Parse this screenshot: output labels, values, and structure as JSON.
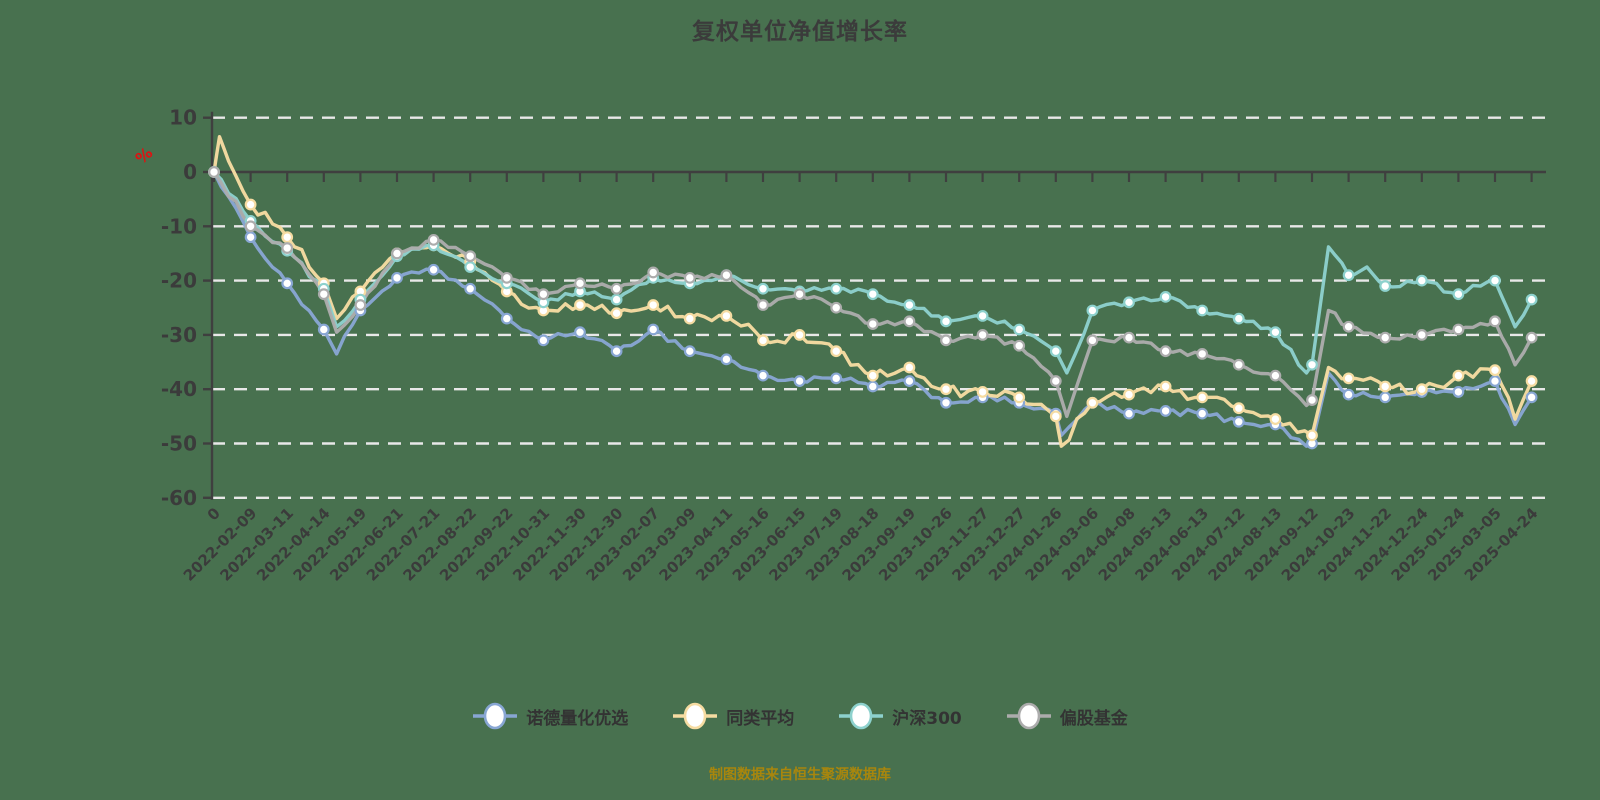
{
  "title": "复权单位净值增长率",
  "caption": "制图数据来自恒生聚源数据库",
  "chart_data": {
    "type": "line",
    "title": "复权单位净值增长率",
    "xlabel": "",
    "ylabel": "%",
    "ylim": [
      -60,
      10
    ],
    "y_ticks": [
      10,
      0,
      -10,
      -20,
      -30,
      -40,
      -50,
      -60
    ],
    "grid": "horizontal dashed",
    "legend_position": "bottom",
    "marker": "white circle at every category tick",
    "categories": [
      "0",
      "2022-02-09",
      "2022-03-11",
      "2022-04-14",
      "2022-05-19",
      "2022-06-21",
      "2022-07-21",
      "2022-08-22",
      "2022-09-22",
      "2022-10-31",
      "2022-11-30",
      "2022-12-30",
      "2023-02-07",
      "2023-03-09",
      "2023-04-11",
      "2023-05-16",
      "2023-06-15",
      "2023-07-19",
      "2023-08-18",
      "2023-09-19",
      "2023-10-26",
      "2023-11-27",
      "2023-12-27",
      "2024-01-26",
      "2024-03-06",
      "2024-04-08",
      "2024-05-13",
      "2024-06-13",
      "2024-07-12",
      "2024-08-13",
      "2024-09-12",
      "2024-10-23",
      "2024-11-22",
      "2024-12-24",
      "2025-01-24",
      "2025-03-05",
      "2025-04-24"
    ],
    "series": [
      {
        "name": "诺德量化优选",
        "color": "#88a6d3",
        "values": [
          0,
          -12,
          -20.5,
          -29,
          -25.5,
          -19.5,
          -18,
          -21.5,
          -27,
          -31,
          -29.5,
          -33,
          -29,
          -33,
          -34.5,
          -37.5,
          -38.5,
          -38,
          -39.5,
          -38.5,
          -42.5,
          -41.5,
          -42.5,
          -44.5,
          -42.5,
          -44.5,
          -44,
          -44.5,
          -46,
          -46.5,
          -50,
          -41,
          -41.5,
          -40.5,
          -40.5,
          -38.5,
          -41.5
        ],
        "between_tick_features": [
          [
            3.35,
            -33.5
          ],
          [
            23.15,
            -48.5
          ],
          [
            29.85,
            -50.5
          ],
          [
            30.45,
            -37
          ],
          [
            35.55,
            -46.5
          ]
        ]
      },
      {
        "name": "同类平均",
        "color": "#f6dca2",
        "values": [
          0,
          -6,
          -12,
          -20.5,
          -22,
          -15,
          -13.5,
          -16.5,
          -22,
          -25.5,
          -24.5,
          -26,
          -24.5,
          -27,
          -26.5,
          -31,
          -30,
          -33,
          -37.5,
          -36,
          -40,
          -40.5,
          -41.5,
          -45,
          -42.5,
          -41,
          -39.5,
          -41.5,
          -43.5,
          -45.5,
          -48.5,
          -38,
          -39.5,
          -40,
          -37.5,
          -36.5,
          -38.5
        ],
        "between_tick_features": [
          [
            0.15,
            6.5
          ],
          [
            0.4,
            2
          ],
          [
            3.35,
            -27
          ],
          [
            23.15,
            -50.5
          ],
          [
            30.45,
            -36
          ],
          [
            35.55,
            -45.5
          ]
        ]
      },
      {
        "name": "沪深300",
        "color": "#8dd1cd",
        "values": [
          0,
          -9,
          -14.5,
          -21.5,
          -23.5,
          -15.5,
          -13.5,
          -17.5,
          -20.5,
          -24,
          -22,
          -23.5,
          -19.5,
          -20.5,
          -19,
          -21.5,
          -22,
          -21.5,
          -22.5,
          -24.5,
          -27.5,
          -26.5,
          -29,
          -33,
          -25.5,
          -24,
          -23,
          -25.5,
          -27,
          -29.5,
          -35.5,
          -19,
          -21,
          -20,
          -22.5,
          -20,
          -23.5
        ],
        "between_tick_features": [
          [
            3.35,
            -28.5
          ],
          [
            23.3,
            -37
          ],
          [
            29.85,
            -37
          ],
          [
            30.45,
            -13.8
          ],
          [
            31.5,
            -17.5
          ],
          [
            35.55,
            -28.5
          ]
        ]
      },
      {
        "name": "偏股基金",
        "color": "#acacac",
        "values": [
          0,
          -10,
          -14,
          -22.5,
          -24.5,
          -15,
          -12.5,
          -15.5,
          -19.5,
          -22.5,
          -20.5,
          -21.5,
          -18.5,
          -19.5,
          -19,
          -24.5,
          -22.5,
          -25,
          -28,
          -27.5,
          -31,
          -30,
          -32,
          -38.5,
          -31,
          -30.5,
          -33,
          -33.5,
          -35.5,
          -37.5,
          -42,
          -28.5,
          -30.5,
          -30,
          -29,
          -27.5,
          -30.5
        ],
        "between_tick_features": [
          [
            3.35,
            -29.5
          ],
          [
            23.3,
            -45
          ],
          [
            29.85,
            -43
          ],
          [
            30.45,
            -25.5
          ],
          [
            35.55,
            -35.5
          ]
        ]
      }
    ],
    "colors": {
      "background": "#48714F",
      "grid": "#e8e8e8",
      "axis": "#3f3f3f",
      "text": "#3b3b3b",
      "unit_label": "#e01111",
      "caption": "#a8860d",
      "marker_fill": "#ffffff"
    }
  }
}
